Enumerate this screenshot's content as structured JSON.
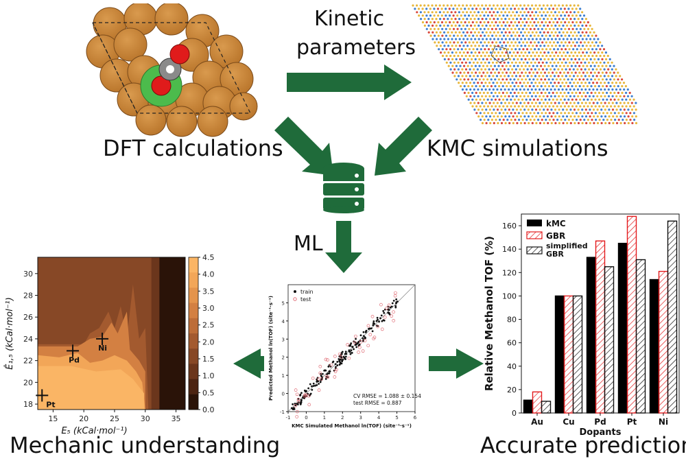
{
  "labels": {
    "kinetic_line1": "Kinetic",
    "kinetic_line2": "parameters",
    "dft": "DFT calculations",
    "kmc": "KMC simulations",
    "ml": "ML",
    "mechanic": "Mechanic understanding",
    "accurate": "Accurate prediction"
  },
  "colors": {
    "arrow": "#1f6b3a",
    "copper": "#c8802f",
    "copper_edge": "#7a4a1a",
    "database": "#1f6b3a"
  },
  "icons": [
    "database-icon"
  ],
  "contour": {
    "xlabel": "E₅  (kCal·mol⁻¹)",
    "ylabel": "Ê₁,₅  (kCal·mol⁻¹)",
    "xticks": [
      "15",
      "20",
      "25",
      "30",
      "35"
    ],
    "yticks": [
      "18",
      "20",
      "22",
      "24",
      "26",
      "28",
      "30"
    ],
    "colorbar_ticks": [
      "0.0",
      "0.5",
      "1.0",
      "1.5",
      "2.0",
      "2.5",
      "3.0",
      "3.5",
      "4.0",
      "4.5"
    ],
    "points": [
      {
        "label": "Pt",
        "x": 13.2,
        "y": 18.8
      },
      {
        "label": "Pd",
        "x": 18.2,
        "y": 22.9
      },
      {
        "label": "Ni",
        "x": 23.0,
        "y": 24.0
      }
    ]
  },
  "scatter": {
    "xlabel": "KMC Simulated Methanol ln(TOF) (site⁻¹·s⁻¹)",
    "ylabel": "Predicted Methanol ln(TOF) (site⁻¹·s⁻¹)",
    "xticks": [
      "-1",
      "0",
      "1",
      "2",
      "3",
      "4",
      "5",
      "6"
    ],
    "yticks": [
      "-1",
      "0",
      "1",
      "2",
      "3",
      "4",
      "5"
    ],
    "legend": [
      "train",
      "test"
    ],
    "cv_rmse": "CV RMSE = 1.088 ± 0.154",
    "test_rmse": "test RMSE = 0.887"
  },
  "chart_data": {
    "type": "bar",
    "categories": [
      "Au",
      "Cu",
      "Pd",
      "Pt",
      "Ni"
    ],
    "series": [
      {
        "name": "kMC",
        "values": [
          11,
          100,
          133,
          145,
          114
        ]
      },
      {
        "name": "GBR",
        "values": [
          18,
          100,
          147,
          168,
          121
        ]
      },
      {
        "name": "simplified GBR",
        "values": [
          10,
          100,
          125,
          131,
          164
        ]
      }
    ],
    "xlabel": "Dopants",
    "ylabel": "Relative Methanol TOF (%)",
    "ylim": [
      0,
      170
    ],
    "yticks": [
      "0",
      "20",
      "40",
      "60",
      "80",
      "100",
      "120",
      "140",
      "160"
    ],
    "legend_position": "top-left"
  }
}
